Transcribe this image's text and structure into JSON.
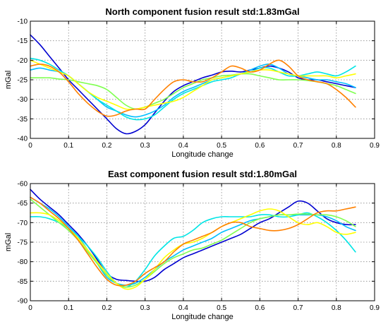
{
  "chart_data": [
    {
      "type": "line",
      "title": "North component fusion result std:1.83mGal",
      "xlabel": "Longitude change",
      "ylabel": "mGal",
      "xlim": [
        0,
        0.9
      ],
      "ylim": [
        -40,
        -10
      ],
      "xticks": [
        0,
        0.1,
        0.2,
        0.3,
        0.4,
        0.5,
        0.6,
        0.7,
        0.8,
        0.9
      ],
      "yticks": [
        -40,
        -35,
        -30,
        -25,
        -20,
        -15,
        -10
      ],
      "xtick_labels": [
        "0",
        "0.1",
        "0.2",
        "0.3",
        "0.4",
        "0.5",
        "0.6",
        "0.7",
        "0.8",
        "0.9"
      ],
      "ytick_labels": [
        "-40",
        "-35",
        "-30",
        "-25",
        "-20",
        "-15",
        "-10"
      ],
      "grid": true,
      "series": [
        {
          "color": "#0000d0",
          "x": [
            0,
            0.025,
            0.05,
            0.075,
            0.1,
            0.125,
            0.15,
            0.175,
            0.2,
            0.225,
            0.25,
            0.275,
            0.3,
            0.325,
            0.35,
            0.375,
            0.4,
            0.425,
            0.45,
            0.475,
            0.5,
            0.525,
            0.55,
            0.575,
            0.6,
            0.625,
            0.65,
            0.675,
            0.7,
            0.725,
            0.75,
            0.775,
            0.8,
            0.825,
            0.85
          ],
          "y": [
            -13.5,
            -16,
            -19,
            -22,
            -25,
            -27.5,
            -30,
            -32.5,
            -35,
            -37.5,
            -38.8,
            -38.2,
            -36.5,
            -33.5,
            -30.5,
            -28,
            -26.5,
            -25.5,
            -24.5,
            -23.8,
            -23,
            -22.8,
            -23,
            -22.5,
            -22,
            -21.5,
            -22,
            -23,
            -24.5,
            -25,
            -25,
            -25.5,
            -26,
            -26.5,
            -27
          ]
        },
        {
          "color": "#00bfff",
          "x": [
            0,
            0.025,
            0.05,
            0.075,
            0.1,
            0.125,
            0.15,
            0.175,
            0.2,
            0.225,
            0.25,
            0.275,
            0.3,
            0.325,
            0.35,
            0.375,
            0.4,
            0.425,
            0.45,
            0.475,
            0.5,
            0.525,
            0.55,
            0.575,
            0.6,
            0.625,
            0.65,
            0.675,
            0.7,
            0.725,
            0.75,
            0.775,
            0.8,
            0.825,
            0.85
          ],
          "y": [
            -22.5,
            -22,
            -22.5,
            -23,
            -24,
            -26,
            -28,
            -30,
            -32,
            -33,
            -34,
            -34.5,
            -34,
            -33,
            -31.5,
            -29.5,
            -28,
            -27,
            -26,
            -25,
            -24.5,
            -24,
            -23.5,
            -22.5,
            -21.5,
            -21,
            -22,
            -23.5,
            -24,
            -24.5,
            -25,
            -25,
            -25.5,
            -26,
            -27
          ]
        },
        {
          "color": "#00e5e5",
          "x": [
            0,
            0.025,
            0.05,
            0.075,
            0.1,
            0.125,
            0.15,
            0.175,
            0.2,
            0.225,
            0.25,
            0.275,
            0.3,
            0.325,
            0.35,
            0.375,
            0.4,
            0.425,
            0.45,
            0.475,
            0.5,
            0.525,
            0.55,
            0.575,
            0.6,
            0.625,
            0.65,
            0.675,
            0.7,
            0.725,
            0.75,
            0.775,
            0.8,
            0.825,
            0.85
          ],
          "y": [
            -19.5,
            -20,
            -21,
            -22.5,
            -24,
            -26,
            -28,
            -30,
            -31.5,
            -33,
            -34.5,
            -35.2,
            -35,
            -34,
            -32,
            -30,
            -28.5,
            -27.5,
            -26.5,
            -25.5,
            -25,
            -24.5,
            -23.5,
            -23,
            -22,
            -22,
            -23,
            -24,
            -24,
            -23.5,
            -23,
            -23.5,
            -24,
            -23,
            -21.5
          ]
        },
        {
          "color": "#7fff50",
          "x": [
            0,
            0.025,
            0.05,
            0.075,
            0.1,
            0.125,
            0.15,
            0.175,
            0.2,
            0.225,
            0.25,
            0.275,
            0.3,
            0.325,
            0.35,
            0.375,
            0.4,
            0.425,
            0.45,
            0.475,
            0.5,
            0.525,
            0.55,
            0.575,
            0.6,
            0.625,
            0.65,
            0.675,
            0.7,
            0.725,
            0.75,
            0.775,
            0.8,
            0.825,
            0.85
          ],
          "y": [
            -24.5,
            -24.5,
            -24.5,
            -24.8,
            -25,
            -25.5,
            -26,
            -26.5,
            -27.5,
            -29.5,
            -31.5,
            -32.5,
            -32,
            -31,
            -30,
            -28.5,
            -27,
            -26,
            -25,
            -24.5,
            -24,
            -23.8,
            -23.5,
            -23.5,
            -24,
            -24.5,
            -25,
            -25,
            -25,
            -25.2,
            -25.5,
            -26,
            -26.5,
            -27.5,
            -28.5
          ]
        },
        {
          "color": "#ffff00",
          "x": [
            0,
            0.025,
            0.05,
            0.075,
            0.1,
            0.125,
            0.15,
            0.175,
            0.2,
            0.225,
            0.25,
            0.275,
            0.3,
            0.325,
            0.35,
            0.375,
            0.4,
            0.425,
            0.45,
            0.475,
            0.5,
            0.525,
            0.55,
            0.575,
            0.6,
            0.625,
            0.65,
            0.675,
            0.7,
            0.725,
            0.75,
            0.775,
            0.8,
            0.825,
            0.85
          ],
          "y": [
            -20,
            -21,
            -22,
            -23,
            -24,
            -26,
            -28,
            -29.5,
            -30.5,
            -31.5,
            -32.5,
            -32.5,
            -32,
            -31.5,
            -31,
            -30.5,
            -29.5,
            -28,
            -26.5,
            -25,
            -24.5,
            -24,
            -23.5,
            -23,
            -22.5,
            -22.5,
            -23,
            -23.5,
            -24,
            -24,
            -24,
            -24,
            -24.5,
            -24,
            -23.5
          ]
        },
        {
          "color": "#ff8000",
          "x": [
            0,
            0.025,
            0.05,
            0.075,
            0.1,
            0.125,
            0.15,
            0.175,
            0.2,
            0.225,
            0.25,
            0.275,
            0.3,
            0.325,
            0.35,
            0.375,
            0.4,
            0.425,
            0.45,
            0.475,
            0.5,
            0.525,
            0.55,
            0.575,
            0.6,
            0.625,
            0.65,
            0.675,
            0.7,
            0.725,
            0.75,
            0.775,
            0.8,
            0.825,
            0.85
          ],
          "y": [
            -21.5,
            -21,
            -21.5,
            -23,
            -25.5,
            -28.5,
            -31,
            -33,
            -34.3,
            -34,
            -33,
            -32.5,
            -32.5,
            -30,
            -27.5,
            -25.5,
            -25,
            -25.5,
            -25.5,
            -24.5,
            -23,
            -21.5,
            -22,
            -23,
            -22.5,
            -21,
            -20,
            -21.5,
            -24,
            -25,
            -25.5,
            -26,
            -27.5,
            -29.5,
            -32
          ]
        }
      ]
    },
    {
      "type": "line",
      "title": "East component fusion result std:1.80mGal",
      "xlabel": "Longitude change",
      "ylabel": "mGal",
      "xlim": [
        0,
        0.9
      ],
      "ylim": [
        -90,
        -60
      ],
      "xticks": [
        0,
        0.1,
        0.2,
        0.3,
        0.4,
        0.5,
        0.6,
        0.7,
        0.8,
        0.9
      ],
      "yticks": [
        -90,
        -85,
        -80,
        -75,
        -70,
        -65,
        -60
      ],
      "xtick_labels": [
        "0",
        "0.1",
        "0.2",
        "0.3",
        "0.4",
        "0.5",
        "0.6",
        "0.7",
        "0.8",
        "0.9"
      ],
      "ytick_labels": [
        "-90",
        "-85",
        "-80",
        "-75",
        "-70",
        "-65",
        "-60"
      ],
      "grid": true,
      "series": [
        {
          "color": "#0000d0",
          "x": [
            0,
            0.025,
            0.05,
            0.075,
            0.1,
            0.125,
            0.15,
            0.175,
            0.2,
            0.225,
            0.25,
            0.275,
            0.3,
            0.325,
            0.35,
            0.375,
            0.4,
            0.425,
            0.45,
            0.475,
            0.5,
            0.525,
            0.55,
            0.575,
            0.6,
            0.625,
            0.65,
            0.675,
            0.7,
            0.725,
            0.75,
            0.775,
            0.8,
            0.825,
            0.85
          ],
          "y": [
            -61.5,
            -64,
            -66,
            -68,
            -70.5,
            -73,
            -76,
            -79.5,
            -83,
            -84.5,
            -84.8,
            -85,
            -85,
            -84,
            -82,
            -80.5,
            -79,
            -78,
            -77,
            -76,
            -75,
            -74,
            -73,
            -71.5,
            -70,
            -69,
            -67.5,
            -66,
            -64.5,
            -65,
            -67,
            -69,
            -70,
            -70.5,
            -70.5
          ]
        },
        {
          "color": "#00bfff",
          "x": [
            0,
            0.025,
            0.05,
            0.075,
            0.1,
            0.125,
            0.15,
            0.175,
            0.2,
            0.225,
            0.25,
            0.275,
            0.3,
            0.325,
            0.35,
            0.375,
            0.4,
            0.425,
            0.45,
            0.475,
            0.5,
            0.525,
            0.55,
            0.575,
            0.6,
            0.625,
            0.65,
            0.675,
            0.7,
            0.725,
            0.75,
            0.775,
            0.8,
            0.825,
            0.85
          ],
          "y": [
            -63.5,
            -65,
            -66.5,
            -68.5,
            -71,
            -73.5,
            -77,
            -80.5,
            -84,
            -85.5,
            -86,
            -85.5,
            -84,
            -82,
            -80,
            -78.5,
            -77,
            -76,
            -75,
            -74,
            -72.5,
            -71.5,
            -70.5,
            -69.5,
            -69,
            -68.5,
            -68,
            -68,
            -68,
            -68,
            -68,
            -68.5,
            -69.5,
            -71,
            -72
          ]
        },
        {
          "color": "#00e5e5",
          "x": [
            0,
            0.025,
            0.05,
            0.075,
            0.1,
            0.125,
            0.15,
            0.175,
            0.2,
            0.225,
            0.25,
            0.275,
            0.3,
            0.325,
            0.35,
            0.375,
            0.4,
            0.425,
            0.45,
            0.475,
            0.5,
            0.525,
            0.55,
            0.575,
            0.6,
            0.625,
            0.65,
            0.675,
            0.7,
            0.725,
            0.75,
            0.775,
            0.8,
            0.825,
            0.85
          ],
          "y": [
            -68.5,
            -68.5,
            -69,
            -70,
            -71.5,
            -73.5,
            -76,
            -79,
            -82.5,
            -85.5,
            -86.5,
            -85,
            -82,
            -78.5,
            -76,
            -74,
            -73.5,
            -72,
            -70,
            -69,
            -68.5,
            -68.5,
            -68.5,
            -68.5,
            -68,
            -68,
            -68.5,
            -68.5,
            -68,
            -67.5,
            -68.5,
            -70,
            -72,
            -74.5,
            -77.5
          ]
        },
        {
          "color": "#7fff50",
          "x": [
            0,
            0.025,
            0.05,
            0.075,
            0.1,
            0.125,
            0.15,
            0.175,
            0.2,
            0.225,
            0.25,
            0.275,
            0.3,
            0.325,
            0.35,
            0.375,
            0.4,
            0.425,
            0.45,
            0.475,
            0.5,
            0.525,
            0.55,
            0.575,
            0.6,
            0.625,
            0.65,
            0.675,
            0.7,
            0.725,
            0.75,
            0.775,
            0.8,
            0.825,
            0.85
          ],
          "y": [
            -64,
            -66,
            -68,
            -70,
            -72,
            -74.5,
            -77.5,
            -80.5,
            -83.5,
            -85.5,
            -86.5,
            -86,
            -84.5,
            -82.5,
            -80.5,
            -79,
            -78,
            -77,
            -76.5,
            -75.5,
            -74.5,
            -73,
            -71.5,
            -70,
            -69,
            -68.5,
            -68,
            -68,
            -67.8,
            -67.8,
            -68,
            -68,
            -68.5,
            -69.5,
            -71
          ]
        },
        {
          "color": "#ffff00",
          "x": [
            0,
            0.025,
            0.05,
            0.075,
            0.1,
            0.125,
            0.15,
            0.175,
            0.2,
            0.225,
            0.25,
            0.275,
            0.3,
            0.325,
            0.35,
            0.375,
            0.4,
            0.425,
            0.45,
            0.475,
            0.5,
            0.525,
            0.55,
            0.575,
            0.6,
            0.625,
            0.65,
            0.675,
            0.7,
            0.725,
            0.75,
            0.775,
            0.8,
            0.825,
            0.85
          ],
          "y": [
            -67.5,
            -67.5,
            -68,
            -69.5,
            -71.5,
            -74,
            -77,
            -80,
            -83,
            -85.5,
            -87,
            -86.5,
            -84.5,
            -82,
            -79,
            -77,
            -75.5,
            -75,
            -74,
            -72.5,
            -71,
            -70,
            -69,
            -68,
            -67,
            -66.5,
            -67,
            -68.5,
            -70,
            -70.5,
            -70,
            -71,
            -72.5,
            -73,
            -72.5
          ]
        },
        {
          "color": "#ff8000",
          "x": [
            0,
            0.025,
            0.05,
            0.075,
            0.1,
            0.125,
            0.15,
            0.175,
            0.2,
            0.225,
            0.25,
            0.275,
            0.3,
            0.325,
            0.35,
            0.375,
            0.4,
            0.425,
            0.45,
            0.475,
            0.5,
            0.525,
            0.55,
            0.575,
            0.6,
            0.625,
            0.65,
            0.675,
            0.7,
            0.725,
            0.75,
            0.775,
            0.8,
            0.825,
            0.85
          ],
          "y": [
            -63.5,
            -65,
            -67,
            -69,
            -71.5,
            -74.5,
            -78,
            -81.5,
            -84.5,
            -86,
            -86,
            -85,
            -83,
            -81.5,
            -80,
            -77.5,
            -75.5,
            -74.5,
            -73.5,
            -72.5,
            -71,
            -70,
            -70,
            -71,
            -71.5,
            -72,
            -72,
            -71.5,
            -70.5,
            -69,
            -67.5,
            -67,
            -67,
            -66.5,
            -66
          ]
        }
      ]
    }
  ]
}
